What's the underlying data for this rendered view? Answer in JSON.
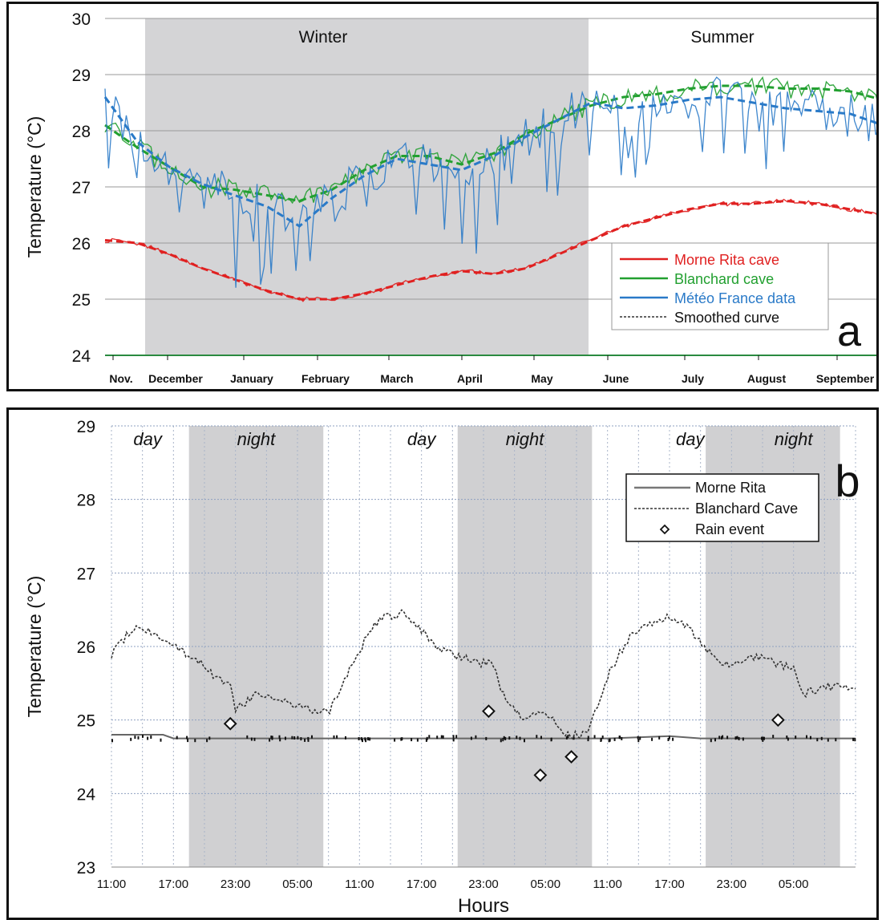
{
  "chart_data": [
    {
      "type": "line",
      "panel_letter": "a",
      "ylabel": "Temperature (°C)",
      "xlabel": "",
      "ylim": [
        24,
        30
      ],
      "y_ticks": [
        "24",
        "25",
        "26",
        "27",
        "28",
        "29",
        "30"
      ],
      "x_ticks": [
        "Nov.",
        "December",
        "January",
        "February",
        "March",
        "April",
        "May",
        "June",
        "July",
        "August",
        "September"
      ],
      "season_labels": [
        "Winter",
        "Summer"
      ],
      "grid": true,
      "legend_position": "bottom-right",
      "legend": [
        {
          "label": "Morne Rita cave",
          "color": "#e02020",
          "style": "solid"
        },
        {
          "label": "Blanchard cave",
          "color": "#22a030",
          "style": "solid"
        },
        {
          "label": "Météo France data",
          "color": "#2a7ac8",
          "style": "solid"
        },
        {
          "label": "Smoothed curve",
          "color": "#333333",
          "style": "dashed"
        }
      ],
      "series": [
        {
          "name": "Morne Rita cave",
          "color": "#e02020",
          "values": [
            26.05,
            26.0,
            25.8,
            25.55,
            25.35,
            25.15,
            25.0,
            25.0,
            25.1,
            25.25,
            25.4,
            25.5,
            25.45,
            25.55,
            25.8,
            26.05,
            26.3,
            26.45,
            26.6,
            26.7,
            26.7,
            26.75,
            26.7,
            26.6,
            26.5
          ]
        },
        {
          "name": "Blanchard cave",
          "color": "#22a030",
          "values": [
            28.1,
            27.7,
            27.35,
            27.0,
            26.95,
            26.85,
            26.75,
            26.95,
            27.3,
            27.55,
            27.55,
            27.4,
            27.6,
            27.95,
            28.2,
            28.45,
            28.6,
            28.65,
            28.75,
            28.8,
            28.8,
            28.75,
            28.75,
            28.7,
            28.55
          ]
        },
        {
          "name": "Météo France data",
          "color": "#2a7ac8",
          "values": [
            28.6,
            27.8,
            27.35,
            27.05,
            26.85,
            26.65,
            26.3,
            26.8,
            27.2,
            27.5,
            27.4,
            27.3,
            27.55,
            27.9,
            28.2,
            28.5,
            28.4,
            28.45,
            28.55,
            28.6,
            28.5,
            28.4,
            28.35,
            28.3,
            28.1
          ]
        }
      ],
      "shaded_periods": [
        "December–May"
      ]
    },
    {
      "type": "line",
      "panel_letter": "b",
      "ylabel": "Temperature (°C)",
      "xlabel": "Hours",
      "ylim": [
        23,
        29
      ],
      "y_ticks": [
        "23",
        "24",
        "25",
        "26",
        "27",
        "28",
        "29"
      ],
      "x_ticks": [
        "11:00",
        "17:00",
        "23:00",
        "05:00",
        "11:00",
        "17:00",
        "23:00",
        "05:00",
        "11:00",
        "17:00",
        "23:00",
        "05:00"
      ],
      "period_labels": [
        "day",
        "night",
        "day",
        "night",
        "day",
        "night"
      ],
      "grid": true,
      "legend_position": "top-right",
      "legend": [
        {
          "label": "Morne Rita",
          "color": "#777777",
          "style": "solid"
        },
        {
          "label": "Blanchard Cave",
          "color": "#333333",
          "style": "dashed"
        },
        {
          "label": "Rain event",
          "color": "#111111",
          "style": "diamond"
        }
      ],
      "series": [
        {
          "name": "Morne Rita",
          "x_hours": [
            0,
            5,
            6,
            12,
            18,
            24,
            30,
            36,
            42,
            48,
            54,
            57,
            60,
            66,
            72
          ],
          "values": [
            24.8,
            24.8,
            24.75,
            24.75,
            24.75,
            24.75,
            24.75,
            24.75,
            24.75,
            24.75,
            24.78,
            24.75,
            24.75,
            24.75,
            24.75
          ]
        },
        {
          "name": "Blanchard Cave",
          "x_hours": [
            0,
            2,
            4,
            6,
            8,
            10,
            11.5,
            12,
            14,
            16,
            17,
            19,
            21,
            23,
            25,
            26,
            28,
            30,
            32,
            34,
            35,
            37,
            38,
            40,
            42,
            44,
            46,
            48,
            50,
            52,
            54,
            55.5,
            57,
            59,
            61,
            63,
            65,
            66,
            67,
            69,
            72
          ],
          "values": [
            25.9,
            26.25,
            26.2,
            26.0,
            25.85,
            25.6,
            25.5,
            25.15,
            25.35,
            25.3,
            25.25,
            25.15,
            25.1,
            25.7,
            26.2,
            26.4,
            26.45,
            26.2,
            25.95,
            25.85,
            25.8,
            25.75,
            25.3,
            25.0,
            25.1,
            24.8,
            24.8,
            25.6,
            26.1,
            26.3,
            26.4,
            26.3,
            26.05,
            25.75,
            25.8,
            25.85,
            25.75,
            25.7,
            25.35,
            25.45,
            25.45
          ]
        }
      ],
      "rain_events": [
        {
          "x_hours": 11.5,
          "value": 24.95
        },
        {
          "x_hours": 36.5,
          "value": 25.12
        },
        {
          "x_hours": 41.5,
          "value": 24.25
        },
        {
          "x_hours": 44.5,
          "value": 24.5
        },
        {
          "x_hours": 64.5,
          "value": 25.0
        }
      ],
      "shaded_periods": [
        "night",
        "night",
        "night"
      ]
    }
  ]
}
